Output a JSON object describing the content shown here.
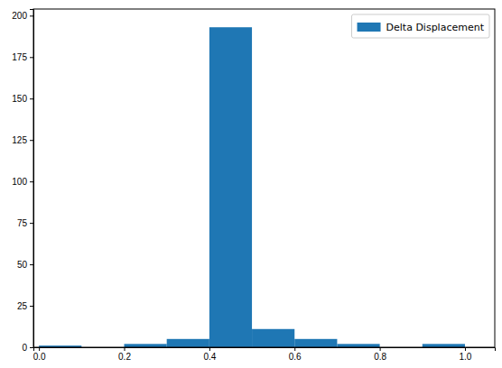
{
  "chart_data": {
    "type": "histogram",
    "bins": [
      0.0,
      0.1,
      0.2,
      0.3,
      0.4,
      0.5,
      0.6,
      0.7,
      0.8,
      0.9,
      1.0
    ],
    "series": [
      {
        "name": "Delta Displacement",
        "color": "#1f77b4",
        "values": [
          1,
          0,
          2,
          5,
          193,
          11,
          5,
          2,
          0,
          2
        ]
      }
    ],
    "xlim": [
      -0.013,
      1.07
    ],
    "xticks": [
      {
        "value": 0.0,
        "label": "0.0"
      },
      {
        "value": 0.2,
        "label": "0.2"
      },
      {
        "value": 0.4,
        "label": "0.4"
      },
      {
        "value": 0.6,
        "label": "0.6"
      },
      {
        "value": 0.8,
        "label": "0.8"
      },
      {
        "value": 1.0,
        "label": "1.0"
      }
    ],
    "ylim": [
      0,
      204
    ],
    "yticks": [
      0,
      25,
      50,
      75,
      100,
      125,
      150,
      175,
      200
    ],
    "legend": "upper right"
  }
}
